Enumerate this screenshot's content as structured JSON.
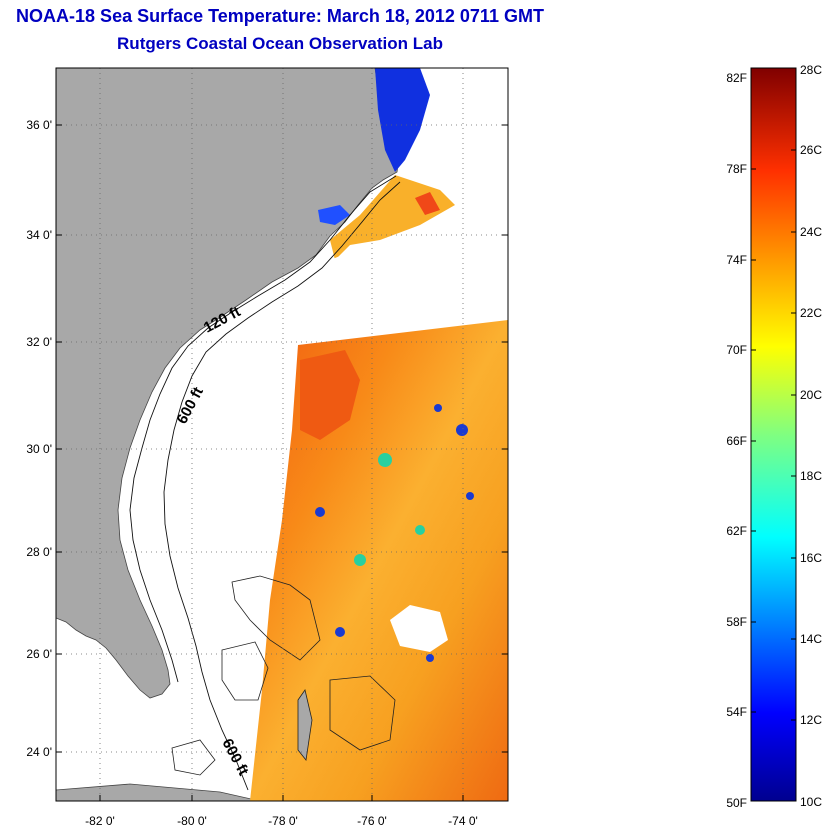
{
  "header": {
    "title": "NOAA-18 Sea Surface Temperature:  March 18, 2012 0711 GMT",
    "subtitle": "Rutgers Coastal Ocean Observation Lab"
  },
  "map": {
    "lat_ticks": [
      "36 0'",
      "34 0'",
      "32 0'",
      "30 0'",
      "28 0'",
      "26 0'",
      "24 0'"
    ],
    "lon_ticks": [
      "-82 0'",
      "-80 0'",
      "-78 0'",
      "-76 0'",
      "-74 0'"
    ],
    "contour_labels": [
      "120 ft",
      "600 ft",
      "600 ft"
    ],
    "colors": {
      "land": "#a8a8a8",
      "cloud": "#ffffff"
    }
  },
  "colorbar": {
    "fahrenheit_labels": [
      "82F",
      "78F",
      "74F",
      "70F",
      "66F",
      "62F",
      "58F",
      "54F",
      "50F"
    ],
    "celsius_labels": [
      "28C",
      "26C",
      "24C",
      "22C",
      "20C",
      "18C",
      "16C",
      "14C",
      "12C",
      "10C"
    ]
  }
}
